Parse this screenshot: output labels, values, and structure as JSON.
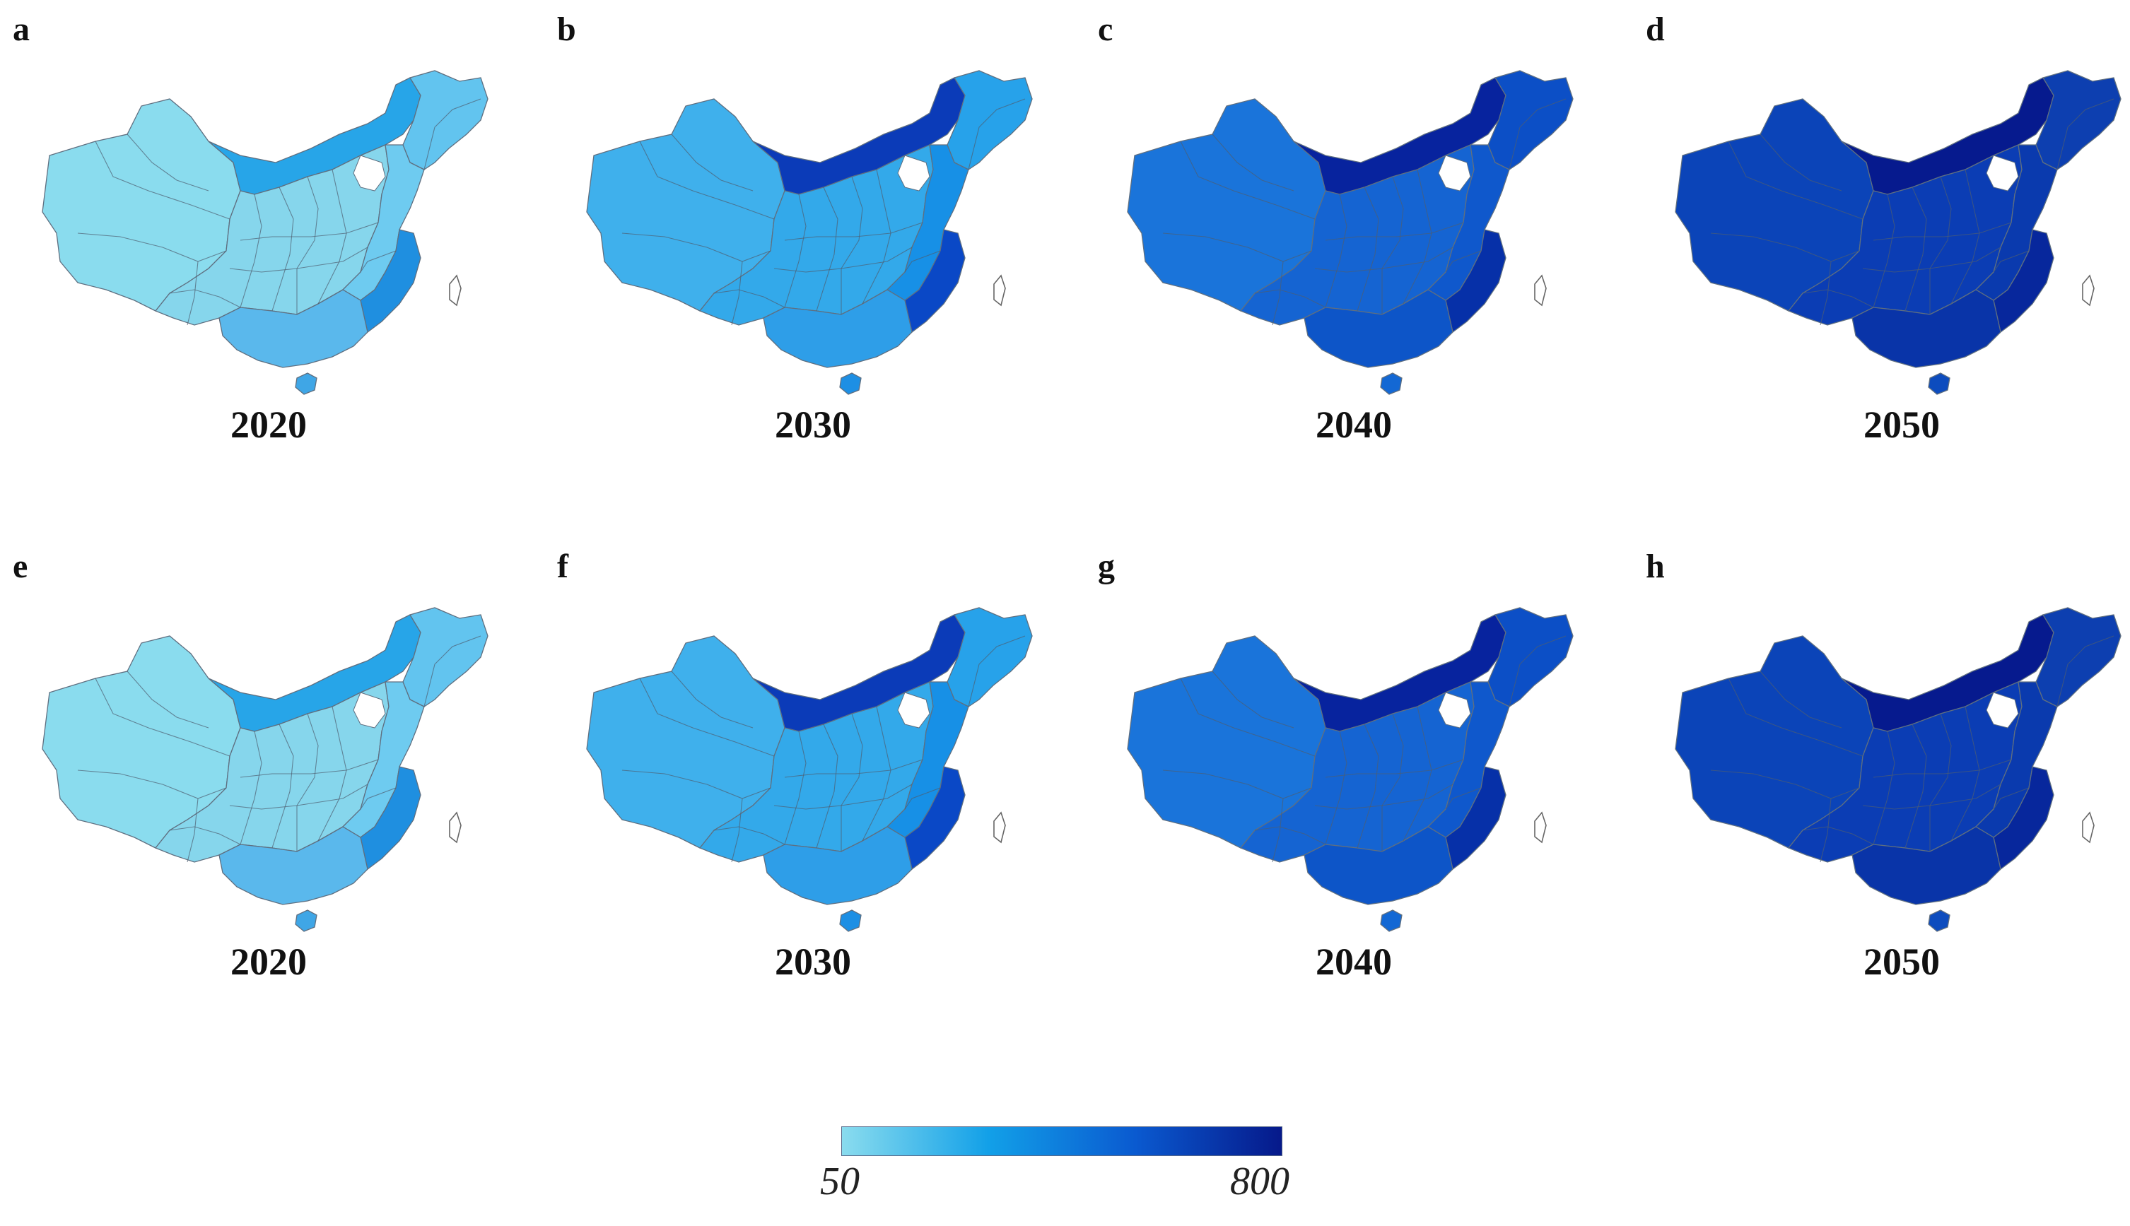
{
  "figure": {
    "panels": [
      {
        "letter": "a",
        "year": "2020",
        "palette": "p2020"
      },
      {
        "letter": "b",
        "year": "2030",
        "palette": "p2030"
      },
      {
        "letter": "c",
        "year": "2040",
        "palette": "p2040"
      },
      {
        "letter": "d",
        "year": "2050",
        "palette": "p2050"
      },
      {
        "letter": "e",
        "year": "2020",
        "palette": "p2020"
      },
      {
        "letter": "f",
        "year": "2030",
        "palette": "p2030"
      },
      {
        "letter": "g",
        "year": "2040",
        "palette": "p2040"
      },
      {
        "letter": "h",
        "year": "2050",
        "palette": "p2050"
      }
    ],
    "palettes": {
      "p2020": {
        "west": "#8adcee",
        "north_strip": "#27a5e8",
        "northeast": "#62c4ef",
        "central": "#86d6ec",
        "east": "#6ecbf0",
        "coast": "#1f8fe0",
        "south": "#5ab8ec",
        "hainan": "#3fa6e6"
      },
      "p2030": {
        "west": "#3fb0ec",
        "north_strip": "#0b3bb8",
        "northeast": "#27a2ea",
        "central": "#33a9ea",
        "east": "#1790e6",
        "coast": "#0a48c6",
        "south": "#2e9ee8",
        "hainan": "#1d8fe4"
      },
      "p2040": {
        "west": "#1a74da",
        "north_strip": "#07239e",
        "northeast": "#0c4fc6",
        "central": "#1564d2",
        "east": "#0f58cc",
        "coast": "#0630a8",
        "south": "#0d55c8",
        "hainan": "#1368d4"
      },
      "p2050": {
        "west": "#0b44b8",
        "north_strip": "#061a8e",
        "northeast": "#0d3fb0",
        "central": "#0b3db4",
        "east": "#0a3aae",
        "coast": "#07279c",
        "south": "#0934a8",
        "hainan": "#0d4cbe"
      }
    },
    "colorbar": {
      "min_label": "50",
      "max_label": "800",
      "min_value": 50,
      "max_value": 800,
      "colors": [
        "#8adcee",
        "#12a0e8",
        "#0a5ad0",
        "#06198a"
      ]
    }
  }
}
